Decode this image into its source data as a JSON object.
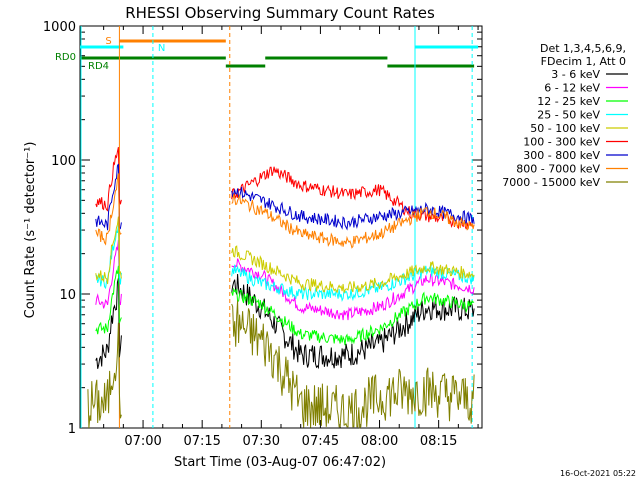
{
  "chart_data": {
    "type": "line",
    "title": "RHESSI Observing Summary Count Rates",
    "xlabel": "Start Time (03-Aug-07 06:47:02)",
    "ylabel": "Count Rate (s⁻¹ detector⁻¹)",
    "y_scale": "log",
    "ylim": [
      1,
      1000
    ],
    "y_ticks": [
      1,
      10,
      100,
      1000
    ],
    "y_tick_labels": [
      "1",
      "10",
      "100",
      "1000"
    ],
    "x_range_minutes": [
      -16,
      86
    ],
    "x_ticks": [
      0,
      15,
      30,
      45,
      60,
      75
    ],
    "x_tick_labels": [
      "07:00",
      "07:15",
      "07:30",
      "07:45",
      "08:00",
      "08:15"
    ],
    "timestamp": "16-Oct-2021 05:22",
    "legend_header": [
      "Det 1,3,4,5,6,9,",
      "FDecim 1, Att 0"
    ],
    "legend_position": "right",
    "series": [
      {
        "name": "3 - 6 keV",
        "color": "#000000",
        "band_start": [
          3.2,
          4.0,
          4.0,
          12.0,
          8.0,
          3.5,
          3.5,
          4.2,
          8.0,
          7.5
        ],
        "x": [
          -12,
          -8,
          -4,
          23,
          30,
          40,
          52,
          60,
          72,
          84
        ]
      },
      {
        "name": "6 - 12 keV",
        "color": "#ff00ff",
        "x": [
          -12,
          -8,
          -4,
          23,
          30,
          40,
          52,
          60,
          72,
          84
        ],
        "values": [
          9,
          8,
          10,
          17,
          14,
          8,
          7,
          8,
          13,
          11
        ]
      },
      {
        "name": "12 - 25 keV",
        "color": "#00ff00",
        "x": [
          -12,
          -8,
          -4,
          23,
          30,
          40,
          52,
          60,
          72,
          84
        ],
        "values": [
          5.5,
          5.5,
          6.5,
          10,
          8.5,
          5,
          4.5,
          5.5,
          9.5,
          8
        ]
      },
      {
        "name": "25 - 50 keV",
        "color": "#00ffff",
        "x": [
          -12,
          -8,
          -4,
          23,
          30,
          40,
          52,
          60,
          72,
          84
        ],
        "values": [
          13,
          12,
          14,
          15,
          12,
          10,
          10,
          11,
          15,
          13
        ]
      },
      {
        "name": "50 - 100 keV",
        "color": "#cccc00",
        "x": [
          -12,
          -8,
          -4,
          23,
          30,
          40,
          52,
          60,
          72,
          84
        ],
        "values": [
          14,
          13,
          15,
          21,
          17,
          12,
          11,
          12,
          16,
          14
        ]
      },
      {
        "name": "100 - 300 keV",
        "color": "#ff0000",
        "x": [
          -12,
          -8,
          -4,
          23,
          33,
          40,
          52,
          60,
          68,
          84
        ],
        "values": [
          50,
          45,
          48,
          55,
          85,
          65,
          55,
          60,
          40,
          33
        ]
      },
      {
        "name": "300 - 800 keV",
        "color": "#0000cc",
        "x": [
          -12,
          -8,
          -4,
          23,
          30,
          40,
          52,
          60,
          72,
          84
        ],
        "values": [
          35,
          32,
          36,
          60,
          50,
          38,
          34,
          38,
          43,
          36
        ]
      },
      {
        "name": "800 - 7000 keV",
        "color": "#ff8000",
        "x": [
          -12,
          -8,
          -4,
          23,
          30,
          40,
          52,
          60,
          72,
          84
        ],
        "values": [
          28,
          25,
          30,
          52,
          42,
          28,
          24,
          28,
          42,
          31
        ]
      },
      {
        "name": "7000 - 15000 keV",
        "color": "#808000",
        "x": [
          -14,
          -8,
          24,
          32,
          40,
          52,
          62,
          72,
          84
        ],
        "values": [
          1.5,
          1.5,
          6,
          4,
          1.5,
          1.3,
          1.8,
          1.9,
          1.6
        ]
      }
    ],
    "markers": [
      {
        "label": "S",
        "color": "#ff8000"
      },
      {
        "label": "N",
        "color": "#00ffff"
      },
      {
        "label": "RD0",
        "color": "#008000"
      },
      {
        "label": "RD4",
        "color": "#008000"
      }
    ]
  }
}
